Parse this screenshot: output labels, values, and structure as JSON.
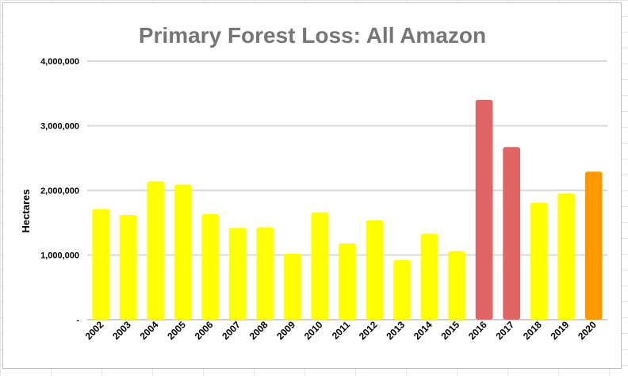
{
  "chart_data": {
    "type": "bar",
    "title": "Primary Forest Loss: All Amazon",
    "xlabel": "",
    "ylabel": "Hectares",
    "ylim": [
      0,
      4000000
    ],
    "yticks": [
      {
        "value": 0,
        "label": "-"
      },
      {
        "value": 1000000,
        "label": "1,000,000"
      },
      {
        "value": 2000000,
        "label": "2,000,000"
      },
      {
        "value": 3000000,
        "label": "3,000,000"
      },
      {
        "value": 4000000,
        "label": "4,000,000"
      }
    ],
    "grid": true,
    "categories": [
      "2002",
      "2003",
      "2004",
      "2005",
      "2006",
      "2007",
      "2008",
      "2009",
      "2010",
      "2011",
      "2012",
      "2013",
      "2014",
      "2015",
      "2016",
      "2017",
      "2018",
      "2019",
      "2020"
    ],
    "values": [
      1710000,
      1620000,
      2140000,
      2090000,
      1630000,
      1420000,
      1430000,
      1020000,
      1660000,
      1180000,
      1540000,
      920000,
      1330000,
      1060000,
      3400000,
      2670000,
      1810000,
      1950000,
      2290000
    ],
    "bar_colors": [
      "#ffff00",
      "#ffff00",
      "#ffff00",
      "#ffff00",
      "#ffff00",
      "#ffff00",
      "#ffff00",
      "#ffff00",
      "#ffff00",
      "#ffff00",
      "#ffff00",
      "#ffff00",
      "#ffff00",
      "#ffff00",
      "#e06666",
      "#e06666",
      "#ffff00",
      "#ffff00",
      "#ff9900"
    ]
  }
}
